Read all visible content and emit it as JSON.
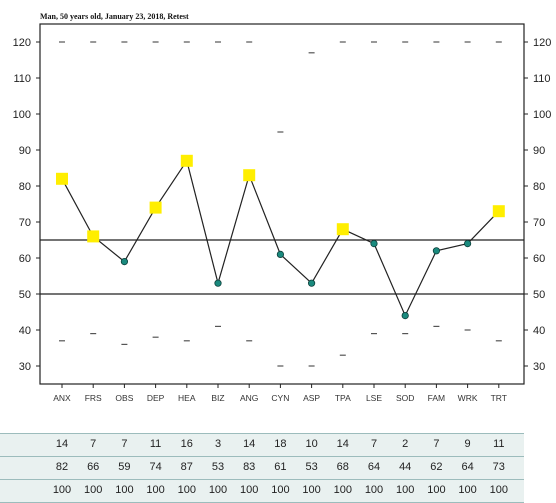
{
  "chart_data": {
    "type": "line",
    "title": "Man, 50 years old, January 23, 2018, Retest",
    "categories": [
      "ANX",
      "FRS",
      "OBS",
      "DEP",
      "HEA",
      "BIZ",
      "ANG",
      "CYN",
      "ASP",
      "TPA",
      "LSE",
      "SOD",
      "FAM",
      "WRK",
      "TRT"
    ],
    "values": [
      82,
      66,
      59,
      74,
      87,
      53,
      83,
      61,
      53,
      68,
      64,
      44,
      62,
      64,
      73
    ],
    "elevated": [
      true,
      true,
      false,
      true,
      true,
      false,
      true,
      false,
      false,
      true,
      false,
      false,
      false,
      false,
      true
    ],
    "upper_marks": [
      120,
      120,
      120,
      120,
      120,
      120,
      120,
      95,
      117,
      120,
      120,
      120,
      120,
      120,
      120
    ],
    "lower_marks": [
      37,
      39,
      36,
      38,
      37,
      41,
      37,
      30,
      30,
      33,
      39,
      39,
      41,
      40,
      37
    ],
    "reference_lines": [
      65,
      50
    ],
    "ylim": [
      25,
      125
    ],
    "yticks": [
      30,
      40,
      50,
      60,
      70,
      80,
      90,
      100,
      110,
      120
    ],
    "colors": {
      "elevated_marker": "#ffee00",
      "normal_marker": "#1a8a7e",
      "line": "#222222"
    },
    "grid": false,
    "table": {
      "rows": [
        [
          "14",
          "7",
          "7",
          "11",
          "16",
          "3",
          "14",
          "18",
          "10",
          "14",
          "7",
          "2",
          "7",
          "9",
          "11"
        ],
        [
          "82",
          "66",
          "59",
          "74",
          "87",
          "53",
          "83",
          "61",
          "53",
          "68",
          "64",
          "44",
          "62",
          "64",
          "73"
        ],
        [
          "100",
          "100",
          "100",
          "100",
          "100",
          "100",
          "100",
          "100",
          "100",
          "100",
          "100",
          "100",
          "100",
          "100",
          "100"
        ]
      ]
    }
  }
}
